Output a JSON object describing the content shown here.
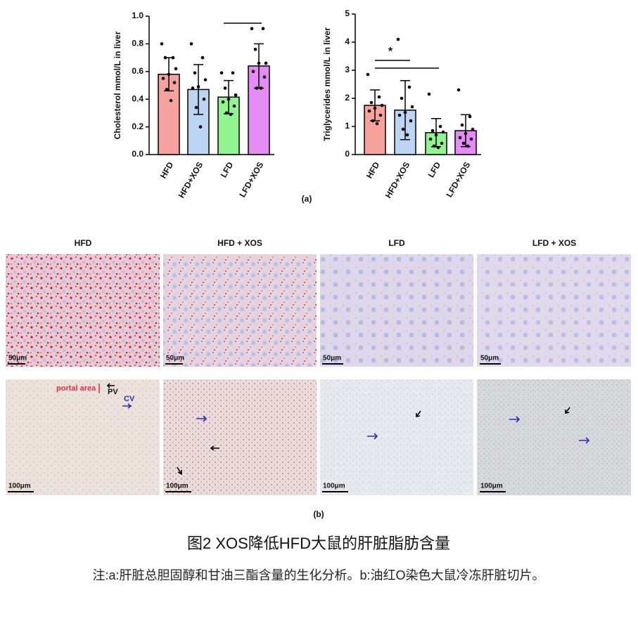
{
  "chart_data": [
    {
      "type": "bar",
      "ylabel": "Cholesterol mmol/L in liver",
      "categories": [
        "HFD",
        "HFD+XOS",
        "LFD",
        "LFD+XOS"
      ],
      "values": [
        0.58,
        0.47,
        0.415,
        0.64
      ],
      "errors": [
        0.12,
        0.18,
        0.12,
        0.16
      ],
      "colors": [
        "#f7a29d",
        "#bcd5f2",
        "#90f48f",
        "#e48cf4"
      ],
      "points": [
        [
          0.8,
          0.7,
          0.7,
          0.62,
          0.58,
          0.55,
          0.52,
          0.47,
          0.39
        ],
        [
          0.8,
          0.7,
          0.59,
          0.54,
          0.49,
          0.48,
          0.4,
          0.34,
          0.2
        ],
        [
          0.59,
          0.59,
          0.48,
          0.43,
          0.4,
          0.38,
          0.35,
          0.3,
          0.29
        ],
        [
          0.91,
          0.91,
          0.76,
          0.66,
          0.66,
          0.6,
          0.56,
          0.48,
          0.48
        ]
      ],
      "ylim": [
        0,
        1
      ],
      "yticks": [
        {
          "value": 0,
          "label": "0.0"
        },
        {
          "value": 0.2,
          "label": "0.2"
        },
        {
          "value": 0.4,
          "label": "0.4"
        },
        {
          "value": 0.6,
          "label": "0.6"
        },
        {
          "value": 0.8,
          "label": "0.8"
        },
        {
          "value": 1,
          "label": "1.0"
        }
      ]
    },
    {
      "type": "bar",
      "ylabel": "Triglycerides mmol/L in liver",
      "categories": [
        "HFD",
        "HFD+XOS",
        "LFD",
        "LFD+XOS"
      ],
      "values": [
        1.75,
        1.58,
        0.78,
        0.85
      ],
      "errors": [
        0.55,
        1.05,
        0.5,
        0.57
      ],
      "colors": [
        "#f7a29d",
        "#bcd5f2",
        "#90f48f",
        "#e48cf4"
      ],
      "points": [
        [
          2.85,
          2.05,
          1.85,
          1.75,
          1.65,
          1.55,
          1.4,
          1.2,
          1.1
        ],
        [
          4.1,
          2.4,
          2.0,
          1.7,
          1.5,
          1.4,
          1.2,
          0.9,
          0.7
        ],
        [
          2.15,
          1.0,
          0.85,
          0.8,
          0.7,
          0.55,
          0.4,
          0.3,
          0.25
        ],
        [
          2.3,
          1.35,
          1.05,
          0.9,
          0.75,
          0.6,
          0.55,
          0.4,
          0.3
        ]
      ],
      "significance": "*",
      "ylim": [
        0,
        5
      ],
      "yticks": [
        0,
        1,
        2,
        3,
        4,
        5
      ]
    }
  ],
  "figure": {
    "panel_a": "(a)",
    "panel_b": "(b)",
    "columns": [
      "HFD",
      "HFD + XOS",
      "LFD",
      "LFD + XOS"
    ],
    "scale_small": "50μm",
    "scale_large": "100μm",
    "portal_area": "portal area",
    "pv": "PV",
    "cv": "CV",
    "title": "图2 XOS降低HFD大鼠的肝脏脂肪含量",
    "note": "注:a:肝脏总胆固醇和甘油三酯含量的生化分析。b:油红O染色大鼠冷冻肝脏切片。"
  }
}
